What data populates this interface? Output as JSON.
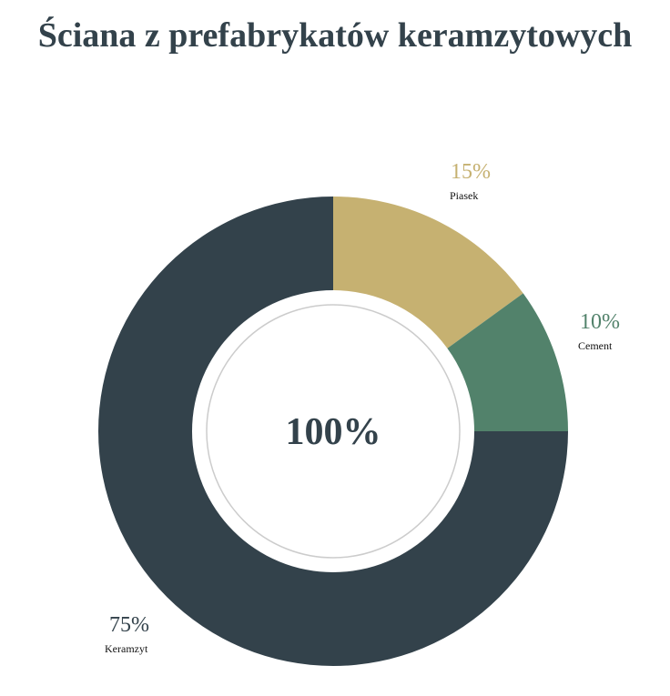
{
  "chart_data": {
    "type": "pie",
    "title": "Ściana z prefabrykatów keramzytowych",
    "center_label": "100%",
    "slices": [
      {
        "name": "Piasek",
        "value": 15,
        "label": "15%",
        "color": "#c6b171"
      },
      {
        "name": "Cement",
        "value": 10,
        "label": "10%",
        "color": "#52826b"
      },
      {
        "name": "Keramzyt",
        "value": 75,
        "label": "75%",
        "color": "#33424b"
      }
    ],
    "colors": {
      "center_text": "#33424b",
      "center_ring": "#cccccc",
      "title": "#33424b",
      "pct_piasek": "#c6b171",
      "pct_cement": "#52826b",
      "pct_keramzyt": "#33424b"
    }
  }
}
